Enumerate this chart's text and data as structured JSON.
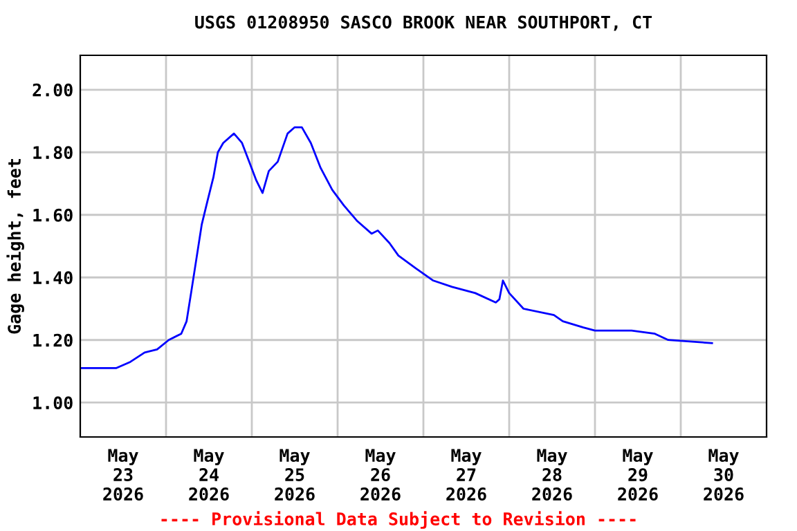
{
  "chart_data": {
    "type": "line",
    "title": "USGS 01208950 SASCO BROOK NEAR SOUTHPORT, CT",
    "ylabel": "Gage height, feet",
    "annotations": [
      "---- Provisional Data Subject to Revision ----"
    ],
    "x": [
      "2026-05-23T00:00",
      "2026-05-23T10:00",
      "2026-05-23T14:00",
      "2026-05-23T18:00",
      "2026-05-23T21:30",
      "2026-05-24T00:45",
      "2026-05-24T04:15",
      "2026-05-24T05:45",
      "2026-05-24T07:00",
      "2026-05-24T08:30",
      "2026-05-24T10:00",
      "2026-05-24T11:30",
      "2026-05-24T13:15",
      "2026-05-24T14:30",
      "2026-05-24T16:00",
      "2026-05-24T19:00",
      "2026-05-24T21:15",
      "2026-05-24T23:15",
      "2026-05-25T01:15",
      "2026-05-25T03:00",
      "2026-05-25T04:45",
      "2026-05-25T07:15",
      "2026-05-25T10:00",
      "2026-05-25T12:00",
      "2026-05-25T14:00",
      "2026-05-25T16:30",
      "2026-05-25T19:15",
      "2026-05-25T22:30",
      "2026-05-26T01:45",
      "2026-05-26T05:30",
      "2026-05-26T09:30",
      "2026-05-26T11:15",
      "2026-05-26T14:30",
      "2026-05-26T17:00",
      "2026-05-26T21:45",
      "2026-05-27T02:45",
      "2026-05-27T08:00",
      "2026-05-27T14:30",
      "2026-05-27T20:15",
      "2026-05-27T21:15",
      "2026-05-27T22:15",
      "2026-05-28T00:00",
      "2026-05-28T04:00",
      "2026-05-28T12:30",
      "2026-05-28T15:00",
      "2026-05-28T20:45",
      "2026-05-29T00:00",
      "2026-05-29T10:15",
      "2026-05-29T16:45",
      "2026-05-29T20:30",
      "2026-05-30T08:45"
    ],
    "series": [
      {
        "color": "#0000ff",
        "values": [
          1.11,
          1.11,
          1.13,
          1.16,
          1.17,
          1.2,
          1.22,
          1.26,
          1.35,
          1.46,
          1.57,
          1.64,
          1.72,
          1.8,
          1.83,
          1.86,
          1.83,
          1.77,
          1.71,
          1.67,
          1.74,
          1.77,
          1.86,
          1.88,
          1.88,
          1.83,
          1.75,
          1.68,
          1.63,
          1.58,
          1.54,
          1.55,
          1.51,
          1.47,
          1.43,
          1.39,
          1.37,
          1.35,
          1.32,
          1.33,
          1.39,
          1.35,
          1.3,
          1.28,
          1.26,
          1.24,
          1.23,
          1.23,
          1.22,
          1.2,
          1.19
        ]
      }
    ],
    "xlim": [
      "2026-05-23T00:00",
      "2026-05-31T00:00"
    ],
    "xticks": [
      {
        "value": "2026-05-23T12:00",
        "label": "May\n23\n2026"
      },
      {
        "value": "2026-05-24T12:00",
        "label": "May\n24\n2026"
      },
      {
        "value": "2026-05-25T12:00",
        "label": "May\n25\n2026"
      },
      {
        "value": "2026-05-26T12:00",
        "label": "May\n26\n2026"
      },
      {
        "value": "2026-05-27T12:00",
        "label": "May\n27\n2026"
      },
      {
        "value": "2026-05-28T12:00",
        "label": "May\n28\n2026"
      },
      {
        "value": "2026-05-29T12:00",
        "label": "May\n29\n2026"
      },
      {
        "value": "2026-05-30T12:00",
        "label": "May\n30\n2026"
      },
      {
        "value": "2026-05-24T00:00",
        "label": null
      },
      {
        "value": "2026-05-25T00:00",
        "label": null
      },
      {
        "value": "2026-05-26T00:00",
        "label": null
      },
      {
        "value": "2026-05-27T00:00",
        "label": null
      },
      {
        "value": "2026-05-28T00:00",
        "label": null
      },
      {
        "value": "2026-05-29T00:00",
        "label": null
      },
      {
        "value": "2026-05-30T00:00",
        "label": null
      }
    ],
    "ylim": [
      0.89,
      2.11
    ],
    "yticks": [
      {
        "value": 1.0,
        "label": "1.00"
      },
      {
        "value": 1.2,
        "label": "1.20"
      },
      {
        "value": 1.4,
        "label": "1.40"
      },
      {
        "value": 1.6,
        "label": "1.60"
      },
      {
        "value": 1.8,
        "label": "1.80"
      },
      {
        "value": 2.0,
        "label": "2.00"
      }
    ],
    "grid": true,
    "legend": false,
    "marker": "none",
    "line_style": "solid"
  }
}
